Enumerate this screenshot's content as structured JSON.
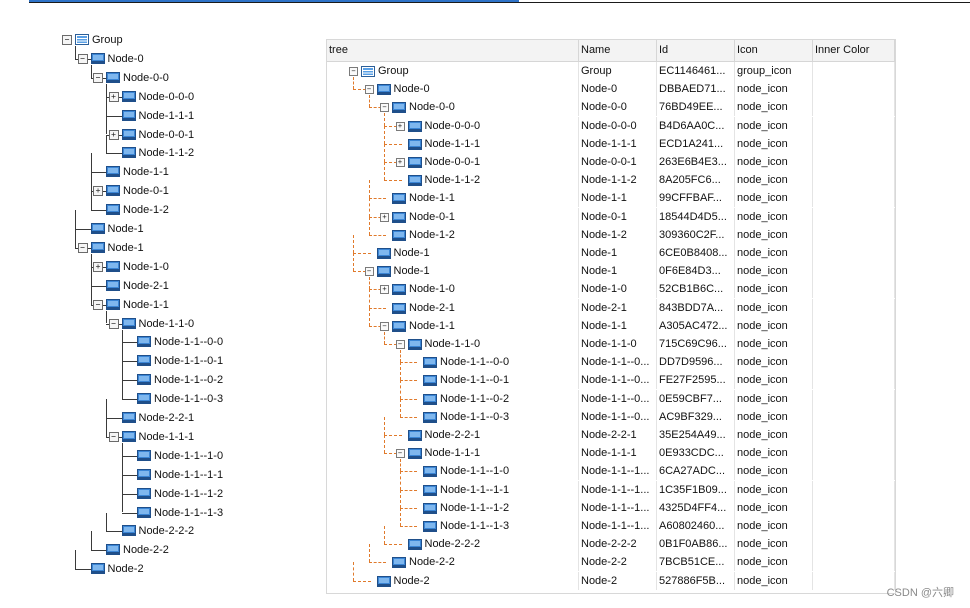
{
  "left_tree": {
    "nodes": [
      {
        "label": "Group",
        "level": 0,
        "type": "group",
        "expander": "-"
      },
      {
        "label": "Node-0",
        "level": 1,
        "type": "node",
        "expander": "-"
      },
      {
        "label": "Node-0-0",
        "level": 2,
        "type": "node",
        "expander": "-"
      },
      {
        "label": "Node-0-0-0",
        "level": 3,
        "type": "node",
        "expander": "+"
      },
      {
        "label": "Node-1-1-1",
        "level": 3,
        "type": "node",
        "expander": ""
      },
      {
        "label": "Node-0-0-1",
        "level": 3,
        "type": "node",
        "expander": "+"
      },
      {
        "label": "Node-1-1-2",
        "level": 3,
        "type": "node",
        "expander": ""
      },
      {
        "label": "Node-1-1",
        "level": 2,
        "type": "node",
        "expander": ""
      },
      {
        "label": "Node-0-1",
        "level": 2,
        "type": "node",
        "expander": "+"
      },
      {
        "label": "Node-1-2",
        "level": 2,
        "type": "node",
        "expander": ""
      },
      {
        "label": "Node-1",
        "level": 1,
        "type": "node",
        "expander": ""
      },
      {
        "label": "Node-1",
        "level": 1,
        "type": "node",
        "expander": "-"
      },
      {
        "label": "Node-1-0",
        "level": 2,
        "type": "node",
        "expander": "+"
      },
      {
        "label": "Node-2-1",
        "level": 2,
        "type": "node",
        "expander": ""
      },
      {
        "label": "Node-1-1",
        "level": 2,
        "type": "node",
        "expander": "-"
      },
      {
        "label": "Node-1-1-0",
        "level": 3,
        "type": "node",
        "expander": "-"
      },
      {
        "label": "Node-1-1--0-0",
        "level": 4,
        "type": "node",
        "expander": ""
      },
      {
        "label": "Node-1-1--0-1",
        "level": 4,
        "type": "node",
        "expander": ""
      },
      {
        "label": "Node-1-1--0-2",
        "level": 4,
        "type": "node",
        "expander": ""
      },
      {
        "label": "Node-1-1--0-3",
        "level": 4,
        "type": "node",
        "expander": ""
      },
      {
        "label": "Node-2-2-1",
        "level": 3,
        "type": "node",
        "expander": ""
      },
      {
        "label": "Node-1-1-1",
        "level": 3,
        "type": "node",
        "expander": "-"
      },
      {
        "label": "Node-1-1--1-0",
        "level": 4,
        "type": "node",
        "expander": ""
      },
      {
        "label": "Node-1-1--1-1",
        "level": 4,
        "type": "node",
        "expander": ""
      },
      {
        "label": "Node-1-1--1-2",
        "level": 4,
        "type": "node",
        "expander": ""
      },
      {
        "label": "Node-1-1--1-3",
        "level": 4,
        "type": "node",
        "expander": ""
      },
      {
        "label": "Node-2-2-2",
        "level": 3,
        "type": "node",
        "expander": ""
      },
      {
        "label": "Node-2-2",
        "level": 2,
        "type": "node",
        "expander": ""
      },
      {
        "label": "Node-2",
        "level": 1,
        "type": "node",
        "expander": ""
      }
    ]
  },
  "grid": {
    "columns": [
      {
        "key": "tree",
        "label": "tree"
      },
      {
        "key": "name",
        "label": "Name"
      },
      {
        "key": "id",
        "label": "Id"
      },
      {
        "key": "icon",
        "label": "Icon"
      },
      {
        "key": "inner",
        "label": "Inner Color"
      }
    ],
    "rows": [
      {
        "tree": "Group",
        "level": 0,
        "type": "group",
        "expander": "-",
        "name": "Group",
        "id": "EC1146461...",
        "icon": "group_icon",
        "inner": ""
      },
      {
        "tree": "Node-0",
        "level": 1,
        "type": "node",
        "expander": "-",
        "name": "Node-0",
        "id": "DBBAED71...",
        "icon": "node_icon",
        "inner": ""
      },
      {
        "tree": "Node-0-0",
        "level": 2,
        "type": "node",
        "expander": "-",
        "name": "Node-0-0",
        "id": "76BD49EE...",
        "icon": "node_icon",
        "inner": ""
      },
      {
        "tree": "Node-0-0-0",
        "level": 3,
        "type": "node",
        "expander": "+",
        "name": "Node-0-0-0",
        "id": "B4D6AA0C...",
        "icon": "node_icon",
        "inner": ""
      },
      {
        "tree": "Node-1-1-1",
        "level": 3,
        "type": "node",
        "expander": "",
        "name": "Node-1-1-1",
        "id": "ECD1A241...",
        "icon": "node_icon",
        "inner": ""
      },
      {
        "tree": "Node-0-0-1",
        "level": 3,
        "type": "node",
        "expander": "+",
        "name": "Node-0-0-1",
        "id": "263E6B4E3...",
        "icon": "node_icon",
        "inner": ""
      },
      {
        "tree": "Node-1-1-2",
        "level": 3,
        "type": "node",
        "expander": "",
        "name": "Node-1-1-2",
        "id": "8A205FC6...",
        "icon": "node_icon",
        "inner": ""
      },
      {
        "tree": "Node-1-1",
        "level": 2,
        "type": "node",
        "expander": "",
        "name": "Node-1-1",
        "id": "99CFFBAF...",
        "icon": "node_icon",
        "inner": ""
      },
      {
        "tree": "Node-0-1",
        "level": 2,
        "type": "node",
        "expander": "+",
        "name": "Node-0-1",
        "id": "18544D4D5...",
        "icon": "node_icon",
        "inner": ""
      },
      {
        "tree": "Node-1-2",
        "level": 2,
        "type": "node",
        "expander": "",
        "name": "Node-1-2",
        "id": "309360C2F...",
        "icon": "node_icon",
        "inner": ""
      },
      {
        "tree": "Node-1",
        "level": 1,
        "type": "node",
        "expander": "",
        "name": "Node-1",
        "id": "6CE0B8408...",
        "icon": "node_icon",
        "inner": ""
      },
      {
        "tree": "Node-1",
        "level": 1,
        "type": "node",
        "expander": "-",
        "name": "Node-1",
        "id": "0F6E84D3...",
        "icon": "node_icon",
        "inner": ""
      },
      {
        "tree": "Node-1-0",
        "level": 2,
        "type": "node",
        "expander": "+",
        "name": "Node-1-0",
        "id": "52CB1B6C...",
        "icon": "node_icon",
        "inner": ""
      },
      {
        "tree": "Node-2-1",
        "level": 2,
        "type": "node",
        "expander": "",
        "name": "Node-2-1",
        "id": "843BDD7A...",
        "icon": "node_icon",
        "inner": ""
      },
      {
        "tree": "Node-1-1",
        "level": 2,
        "type": "node",
        "expander": "-",
        "name": "Node-1-1",
        "id": "A305AC472...",
        "icon": "node_icon",
        "inner": ""
      },
      {
        "tree": "Node-1-1-0",
        "level": 3,
        "type": "node",
        "expander": "-",
        "name": "Node-1-1-0",
        "id": "715C69C96...",
        "icon": "node_icon",
        "inner": ""
      },
      {
        "tree": "Node-1-1--0-0",
        "level": 4,
        "type": "node",
        "expander": "",
        "name": "Node-1-1--0...",
        "id": "DD7D9596...",
        "icon": "node_icon",
        "inner": ""
      },
      {
        "tree": "Node-1-1--0-1",
        "level": 4,
        "type": "node",
        "expander": "",
        "name": "Node-1-1--0...",
        "id": "FE27F2595...",
        "icon": "node_icon",
        "inner": ""
      },
      {
        "tree": "Node-1-1--0-2",
        "level": 4,
        "type": "node",
        "expander": "",
        "name": "Node-1-1--0...",
        "id": "0E59CBF7...",
        "icon": "node_icon",
        "inner": ""
      },
      {
        "tree": "Node-1-1--0-3",
        "level": 4,
        "type": "node",
        "expander": "",
        "name": "Node-1-1--0...",
        "id": "AC9BF329...",
        "icon": "node_icon",
        "inner": ""
      },
      {
        "tree": "Node-2-2-1",
        "level": 3,
        "type": "node",
        "expander": "",
        "name": "Node-2-2-1",
        "id": "35E254A49...",
        "icon": "node_icon",
        "inner": ""
      },
      {
        "tree": "Node-1-1-1",
        "level": 3,
        "type": "node",
        "expander": "-",
        "name": "Node-1-1-1",
        "id": "0E933CDC...",
        "icon": "node_icon",
        "inner": ""
      },
      {
        "tree": "Node-1-1--1-0",
        "level": 4,
        "type": "node",
        "expander": "",
        "name": "Node-1-1--1...",
        "id": "6CA27ADC...",
        "icon": "node_icon",
        "inner": ""
      },
      {
        "tree": "Node-1-1--1-1",
        "level": 4,
        "type": "node",
        "expander": "",
        "name": "Node-1-1--1...",
        "id": "1C35F1B09...",
        "icon": "node_icon",
        "inner": ""
      },
      {
        "tree": "Node-1-1--1-2",
        "level": 4,
        "type": "node",
        "expander": "",
        "name": "Node-1-1--1...",
        "id": "4325D4FF4...",
        "icon": "node_icon",
        "inner": ""
      },
      {
        "tree": "Node-1-1--1-3",
        "level": 4,
        "type": "node",
        "expander": "",
        "name": "Node-1-1--1...",
        "id": "A60802460...",
        "icon": "node_icon",
        "inner": ""
      },
      {
        "tree": "Node-2-2-2",
        "level": 3,
        "type": "node",
        "expander": "",
        "name": "Node-2-2-2",
        "id": "0B1F0AB86...",
        "icon": "node_icon",
        "inner": ""
      },
      {
        "tree": "Node-2-2",
        "level": 2,
        "type": "node",
        "expander": "",
        "name": "Node-2-2",
        "id": "7BCB51CE...",
        "icon": "node_icon",
        "inner": ""
      },
      {
        "tree": "Node-2",
        "level": 1,
        "type": "node",
        "expander": "",
        "name": "Node-2",
        "id": "527886F5B...",
        "icon": "node_icon",
        "inner": ""
      }
    ]
  },
  "colors": {
    "tree_line": "#3a3a3a",
    "dashed_connector": "#e07a2c",
    "node_icon_fill": "#3b86d6",
    "group_icon_fill": "#5aa0e6"
  },
  "watermark": "CSDN @六卿"
}
